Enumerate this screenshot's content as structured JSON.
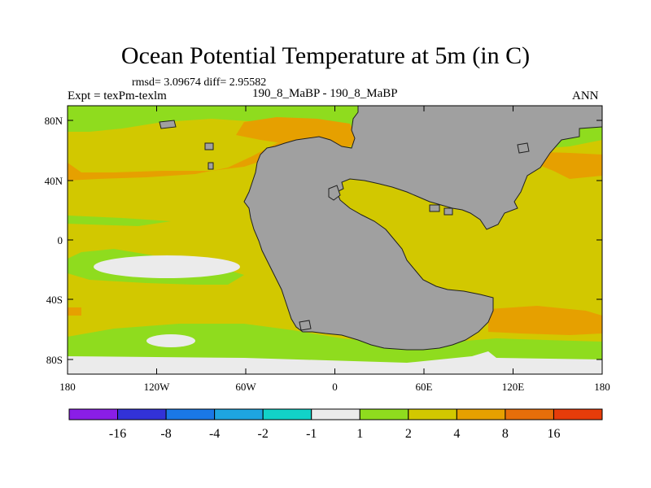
{
  "title": "Ocean Potential Temperature at 5m (in C)",
  "stats": "rmsd= 3.09674 diff= 2.95582",
  "left_label": "Expt = texPm-texlm",
  "center_label": "190_8_MaBP - 190_8_MaBP",
  "right_label": "ANN",
  "lat_labels": [
    "80N",
    "40N",
    "0",
    "40S",
    "80S"
  ],
  "lon_labels": [
    "180",
    "120W",
    "60W",
    "0",
    "60E",
    "120E",
    "180"
  ],
  "colorbar": {
    "labels": [
      "-16",
      "-8",
      "-4",
      "-2",
      "-1",
      "1",
      "2",
      "4",
      "8",
      "16"
    ],
    "colors": [
      "#8a1ee6",
      "#3232d8",
      "#1a78e6",
      "#1ea5e0",
      "#12d2c8",
      "#ebebeb",
      "#8fdc1e",
      "#d2c800",
      "#e6a000",
      "#e66e0a",
      "#e63c0a"
    ]
  },
  "palette": {
    "land": "#a0a0a0",
    "ocean_main": "#d2c800",
    "band_low": "#8fdc1e",
    "band_high": "#e6a000",
    "near_zero": "#ebebeb"
  }
}
